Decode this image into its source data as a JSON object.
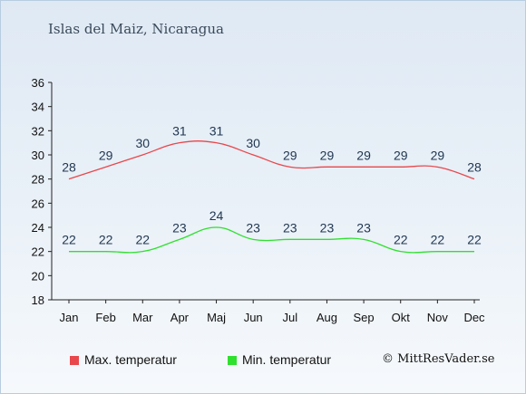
{
  "chart_data": {
    "type": "line",
    "title": "Islas del Maiz, Nicaragua",
    "categories": [
      "Jan",
      "Feb",
      "Mar",
      "Apr",
      "Maj",
      "Jun",
      "Jul",
      "Aug",
      "Sep",
      "Okt",
      "Nov",
      "Dec"
    ],
    "series": [
      {
        "name": "Max. temperatur",
        "color": "#e8474b",
        "values": [
          28,
          29,
          30,
          31,
          31,
          30,
          29,
          29,
          29,
          29,
          29,
          28
        ]
      },
      {
        "name": "Min. temperatur",
        "color": "#2fe02f",
        "values": [
          22,
          22,
          22,
          23,
          24,
          23,
          23,
          23,
          23,
          22,
          22,
          22
        ]
      }
    ],
    "yticks": [
      18,
      20,
      22,
      24,
      26,
      28,
      30,
      32,
      34,
      36
    ],
    "ylim": [
      18,
      36
    ],
    "grid": false,
    "legend_position": "bottom"
  },
  "legend": {
    "max_label": "Max. temperatur",
    "min_label": "Min. temperatur",
    "max_color": "#e8474b",
    "min_color": "#2fe02f"
  },
  "copyright": "© MittResVader.se"
}
